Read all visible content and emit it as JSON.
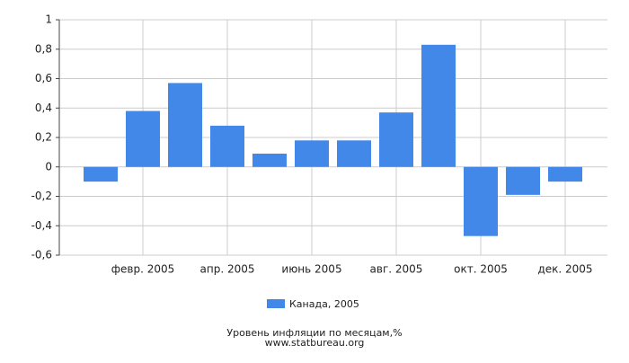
{
  "chart_data": {
    "type": "bar",
    "categories": [
      null,
      "февр. 2005",
      null,
      "апр. 2005",
      null,
      "июнь 2005",
      null,
      "авг. 2005",
      null,
      "окт. 2005",
      null,
      "дек. 2005"
    ],
    "series": [
      {
        "name": "Канада, 2005",
        "color": "#4188e8",
        "values": [
          -0.1,
          0.38,
          0.57,
          0.28,
          0.09,
          0.18,
          0.18,
          0.37,
          0.83,
          -0.47,
          -0.19,
          -0.1
        ]
      }
    ],
    "ylim": [
      -0.6,
      1
    ],
    "yticks": [
      1,
      {
        "value": 0.8,
        "label": "0,8"
      },
      {
        "value": 0.6,
        "label": "0,6"
      },
      {
        "value": 0.4,
        "label": "0,4"
      },
      {
        "value": 0.2,
        "label": "0,2"
      },
      0,
      {
        "value": -0.2,
        "label": "-0,2"
      },
      {
        "value": -0.4,
        "label": "-0,4"
      },
      {
        "value": -0.6,
        "label": "-0,6"
      }
    ],
    "grid": true,
    "title": "Уровень инфляции по месяцам,%",
    "subtitle": "www.statbureau.org"
  }
}
